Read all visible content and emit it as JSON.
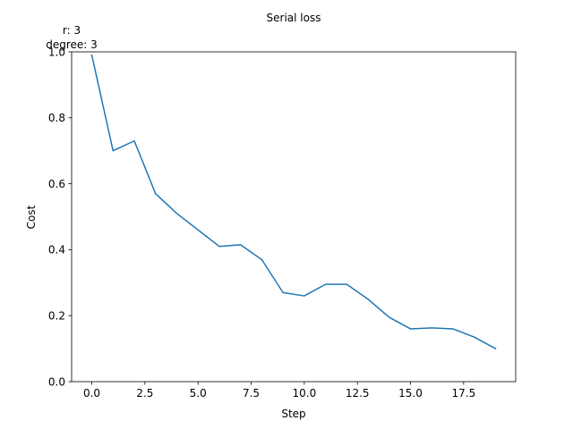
{
  "chart_data": {
    "type": "line",
    "title": "Serial loss",
    "annotation": [
      "r: 3",
      "degree: 3"
    ],
    "xlabel": "Step",
    "ylabel": "Cost",
    "xlim": [
      -0.95,
      19.95
    ],
    "ylim": [
      0.0,
      1.0
    ],
    "x_ticks": [
      0.0,
      2.5,
      5.0,
      7.5,
      10.0,
      12.5,
      15.0,
      17.5
    ],
    "x_tick_labels": [
      "0.0",
      "2.5",
      "5.0",
      "7.5",
      "10.0",
      "12.5",
      "15.0",
      "17.5"
    ],
    "y_ticks": [
      0.0,
      0.2,
      0.4,
      0.6,
      0.8,
      1.0
    ],
    "y_tick_labels": [
      "0.0",
      "0.2",
      "0.4",
      "0.6",
      "0.8",
      "1.0"
    ],
    "grid": false,
    "series": [
      {
        "color": "#1f77b4",
        "x": [
          0,
          1,
          2,
          3,
          4,
          5,
          6,
          7,
          8,
          9,
          10,
          11,
          12,
          13,
          14,
          15,
          16,
          17,
          18,
          19
        ],
        "y": [
          0.99,
          0.7,
          0.73,
          0.57,
          0.51,
          0.46,
          0.41,
          0.415,
          0.37,
          0.27,
          0.26,
          0.295,
          0.295,
          0.25,
          0.195,
          0.16,
          0.163,
          0.16,
          0.135,
          0.1
        ]
      }
    ]
  }
}
